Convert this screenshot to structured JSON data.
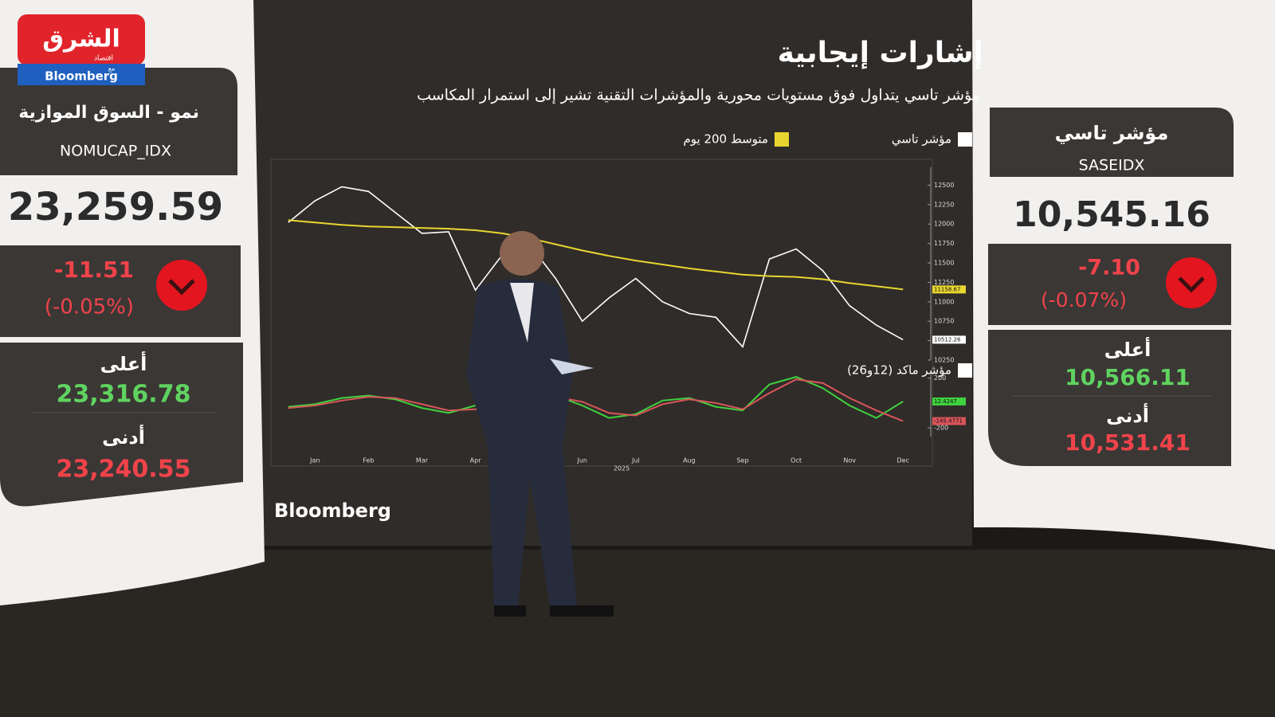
{
  "logo": {
    "brand": "الشرق",
    "sub": "اقتصاد",
    "with": "مع",
    "partner": "Bloomberg"
  },
  "left_panel": {
    "title": "نمو - السوق الموازية",
    "code": "NOMUCAP_IDX",
    "value": "23,259.59",
    "change": "-11.51",
    "change_pct": "(-0.05%)",
    "high_label": "أعلى",
    "high": "23,316.78",
    "low_label": "أدنى",
    "low": "23,240.55"
  },
  "right_panel": {
    "title": "مؤشر تاسي",
    "code": "SASEIDX",
    "value": "10,545.16",
    "change": "-7.10",
    "change_pct": "(-0.07%)",
    "high_label": "أعلى",
    "high": "10,566.11",
    "low_label": "أدنى",
    "low": "10,531.41"
  },
  "chart_data": [
    {
      "type": "line",
      "title": "إشارات إيجابية",
      "subtitle": "مؤشر تاسي يتداول فوق مستويات محورية والمؤشرات التقنية تشير إلى استمرار المكاسب",
      "source": "Bloomberg",
      "ylim": [
        10250,
        12730
      ],
      "yticks": [
        10250,
        10500,
        10750,
        11000,
        11250,
        11500,
        11750,
        12000,
        12250,
        12500
      ],
      "series": [
        {
          "name": "مؤشر تاسي",
          "color": "#ffffff",
          "values": [
            12020,
            12300,
            12480,
            12420,
            12150,
            11880,
            11900,
            11150,
            11600,
            11750,
            11300,
            10750,
            11050,
            11300,
            11000,
            10850,
            10800,
            10420,
            11550,
            11680,
            11400,
            10950,
            10700,
            10512.26
          ]
        },
        {
          "name": "متوسط 200 يوم",
          "color": "#e8d630",
          "values": [
            12050,
            12020,
            11990,
            11970,
            11960,
            11950,
            11940,
            11920,
            11880,
            11820,
            11740,
            11660,
            11590,
            11530,
            11480,
            11430,
            11390,
            11350,
            11330,
            11320,
            11290,
            11240,
            11200,
            11158.67
          ]
        }
      ]
    },
    {
      "type": "line",
      "year": "2025",
      "categories": [
        null,
        "Jan",
        null,
        "Feb",
        null,
        "Mar",
        null,
        "Apr",
        null,
        null,
        null,
        "Jun",
        null,
        "Jul",
        null,
        "Aug",
        null,
        "Sep",
        null,
        "Oct",
        null,
        "Nov",
        null,
        "Dec"
      ],
      "ylim": [
        -270,
        230
      ],
      "yticks": [
        -200,
        200
      ],
      "series": [
        {
          "name": "مؤشر ماكد (12و26)",
          "color": "#3fd23f",
          "values": [
            -30,
            -10,
            40,
            60,
            30,
            -40,
            -80,
            -20,
            30,
            50,
            60,
            -20,
            -120,
            -90,
            20,
            40,
            -30,
            -60,
            150,
            210,
            120,
            -20,
            -120,
            12.4247
          ]
        },
        {
          "color": "#d9555a",
          "values": [
            -40,
            -20,
            20,
            50,
            40,
            -10,
            -60,
            -50,
            10,
            40,
            50,
            10,
            -80,
            -100,
            -10,
            30,
            0,
            -50,
            80,
            190,
            160,
            40,
            -60,
            -145.4771
          ]
        }
      ]
    }
  ]
}
